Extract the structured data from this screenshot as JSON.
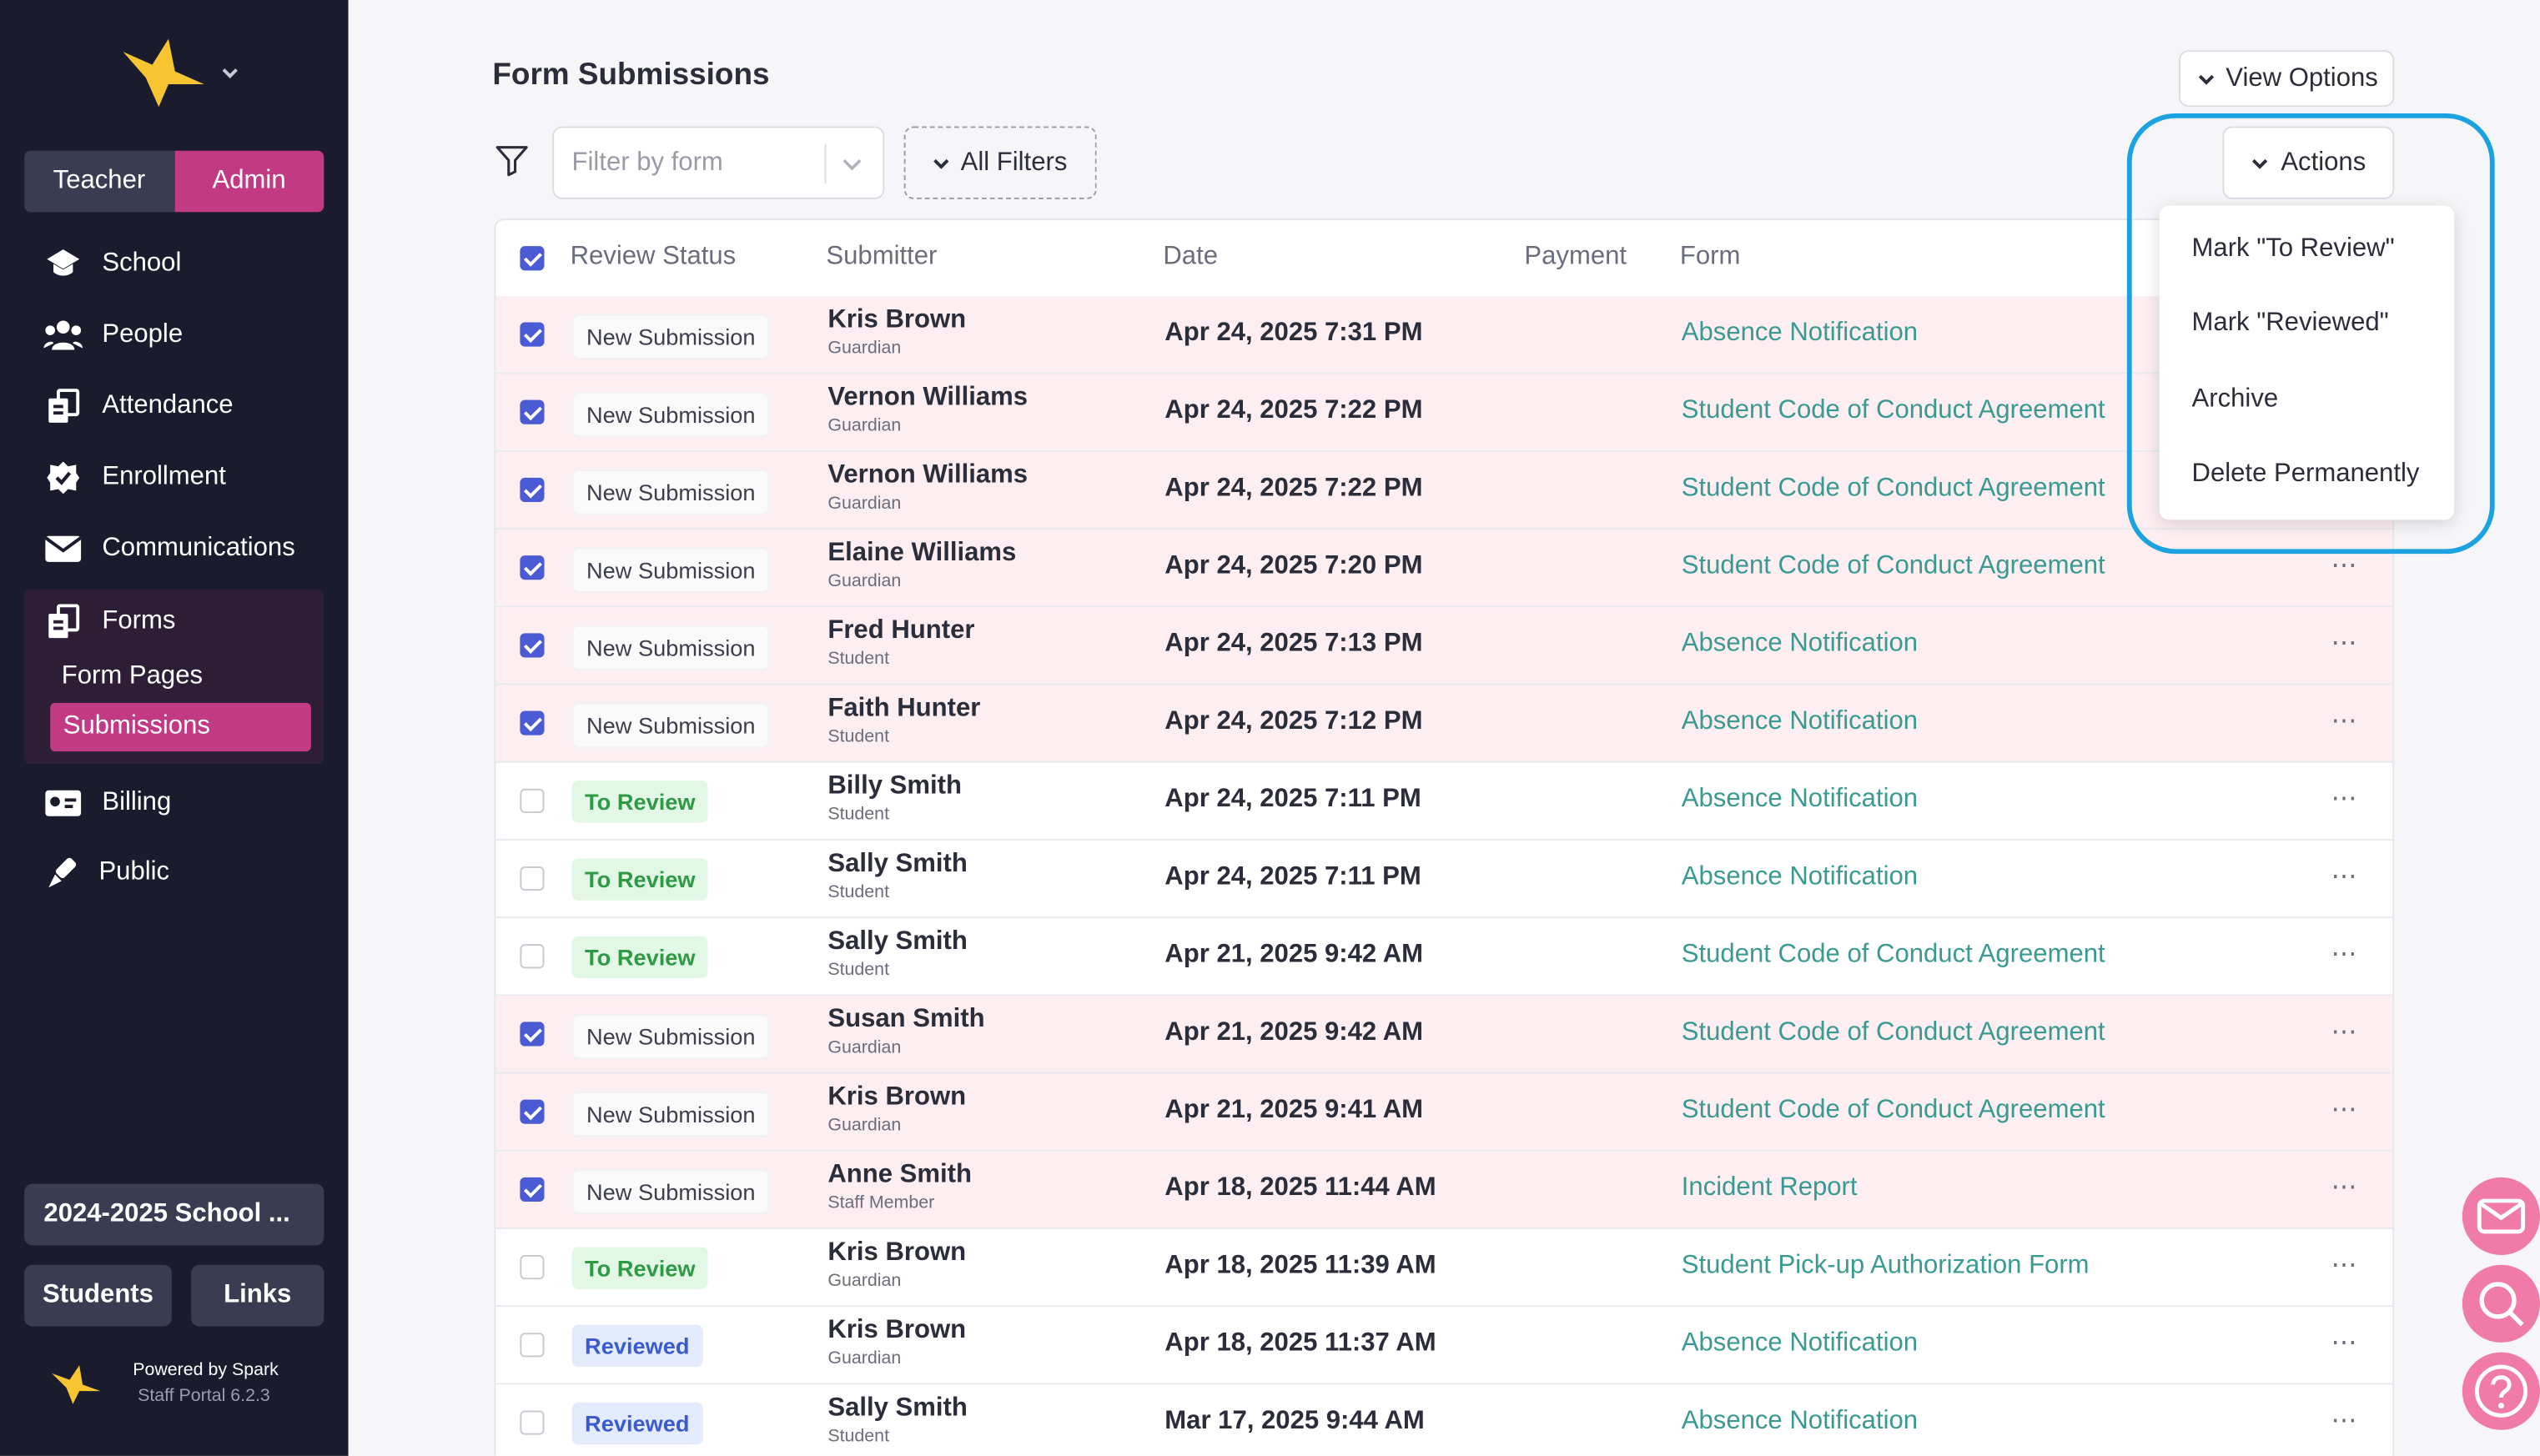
{
  "brand": {
    "accent": "#c23a84",
    "sidebar_bg": "#1a1c2e",
    "link_color": "#3a9a92",
    "logo_icon": "spark-star-logo"
  },
  "sidebar": {
    "roles": [
      "Teacher",
      "Admin"
    ],
    "active_role": "Admin",
    "nav": [
      {
        "label": "School",
        "icon": "school-icon"
      },
      {
        "label": "People",
        "icon": "people-icon"
      },
      {
        "label": "Attendance",
        "icon": "attendance-icon"
      },
      {
        "label": "Enrollment",
        "icon": "enrollment-check-icon"
      },
      {
        "label": "Communications",
        "icon": "envelope-icon"
      },
      {
        "label": "Forms",
        "icon": "forms-icon"
      },
      {
        "label": "Billing",
        "icon": "billing-icon"
      },
      {
        "label": "Public",
        "icon": "public-icon"
      }
    ],
    "forms_sub": [
      "Form Pages",
      "Submissions"
    ],
    "active_sub": "Submissions",
    "year": "2024-2025 School ...",
    "students": "Students",
    "links": "Links",
    "powered": "Powered by Spark",
    "version": "Staff Portal 6.2.3"
  },
  "header": {
    "title": "Form Submissions",
    "view_options": "View Options",
    "actions": "Actions",
    "filter_placeholder": "Filter by form",
    "all_filters": "All Filters"
  },
  "table": {
    "columns": [
      "Review Status",
      "Submitter",
      "Date",
      "Payment",
      "Form"
    ],
    "rows": [
      {
        "selected": true,
        "status": "New Submission",
        "name": "Kris Brown",
        "role": "Guardian",
        "date": "Apr 24, 2025 7:31 PM",
        "form": "Absence Notification"
      },
      {
        "selected": true,
        "status": "New Submission",
        "name": "Vernon Williams",
        "role": "Guardian",
        "date": "Apr 24, 2025 7:22 PM",
        "form": "Student Code of Conduct Agreement"
      },
      {
        "selected": true,
        "status": "New Submission",
        "name": "Vernon Williams",
        "role": "Guardian",
        "date": "Apr 24, 2025 7:22 PM",
        "form": "Student Code of Conduct Agreement"
      },
      {
        "selected": true,
        "status": "New Submission",
        "name": "Elaine Williams",
        "role": "Guardian",
        "date": "Apr 24, 2025 7:20 PM",
        "form": "Student Code of Conduct Agreement"
      },
      {
        "selected": true,
        "status": "New Submission",
        "name": "Fred Hunter",
        "role": "Student",
        "date": "Apr 24, 2025 7:13 PM",
        "form": "Absence Notification"
      },
      {
        "selected": true,
        "status": "New Submission",
        "name": "Faith Hunter",
        "role": "Student",
        "date": "Apr 24, 2025 7:12 PM",
        "form": "Absence Notification"
      },
      {
        "selected": false,
        "status": "To Review",
        "name": "Billy Smith",
        "role": "Student",
        "date": "Apr 24, 2025 7:11 PM",
        "form": "Absence Notification"
      },
      {
        "selected": false,
        "status": "To Review",
        "name": "Sally Smith",
        "role": "Student",
        "date": "Apr 24, 2025 7:11 PM",
        "form": "Absence Notification"
      },
      {
        "selected": false,
        "status": "To Review",
        "name": "Sally Smith",
        "role": "Student",
        "date": "Apr 21, 2025 9:42 AM",
        "form": "Student Code of Conduct Agreement"
      },
      {
        "selected": true,
        "status": "New Submission",
        "name": "Susan Smith",
        "role": "Guardian",
        "date": "Apr 21, 2025 9:42 AM",
        "form": "Student Code of Conduct Agreement"
      },
      {
        "selected": true,
        "status": "New Submission",
        "name": "Kris Brown",
        "role": "Guardian",
        "date": "Apr 21, 2025 9:41 AM",
        "form": "Student Code of Conduct Agreement"
      },
      {
        "selected": true,
        "status": "New Submission",
        "name": "Anne Smith",
        "role": "Staff Member",
        "date": "Apr 18, 2025 11:44 AM",
        "form": "Incident Report"
      },
      {
        "selected": false,
        "status": "To Review",
        "name": "Kris Brown",
        "role": "Guardian",
        "date": "Apr 18, 2025 11:39 AM",
        "form": "Student Pick-up Authorization Form"
      },
      {
        "selected": false,
        "status": "Reviewed",
        "name": "Kris Brown",
        "role": "Guardian",
        "date": "Apr 18, 2025 11:37 AM",
        "form": "Absence Notification"
      },
      {
        "selected": false,
        "status": "Reviewed",
        "name": "Sally Smith",
        "role": "Student",
        "date": "Mar 17, 2025 9:44 AM",
        "form": "Absence Notification"
      }
    ]
  },
  "actions_menu": [
    "Mark \"To Review\"",
    "Mark \"Reviewed\"",
    "Archive",
    "Delete Permanently"
  ],
  "floating": [
    {
      "icon": "mail-icon"
    },
    {
      "icon": "search-icon"
    },
    {
      "icon": "help-icon"
    }
  ]
}
